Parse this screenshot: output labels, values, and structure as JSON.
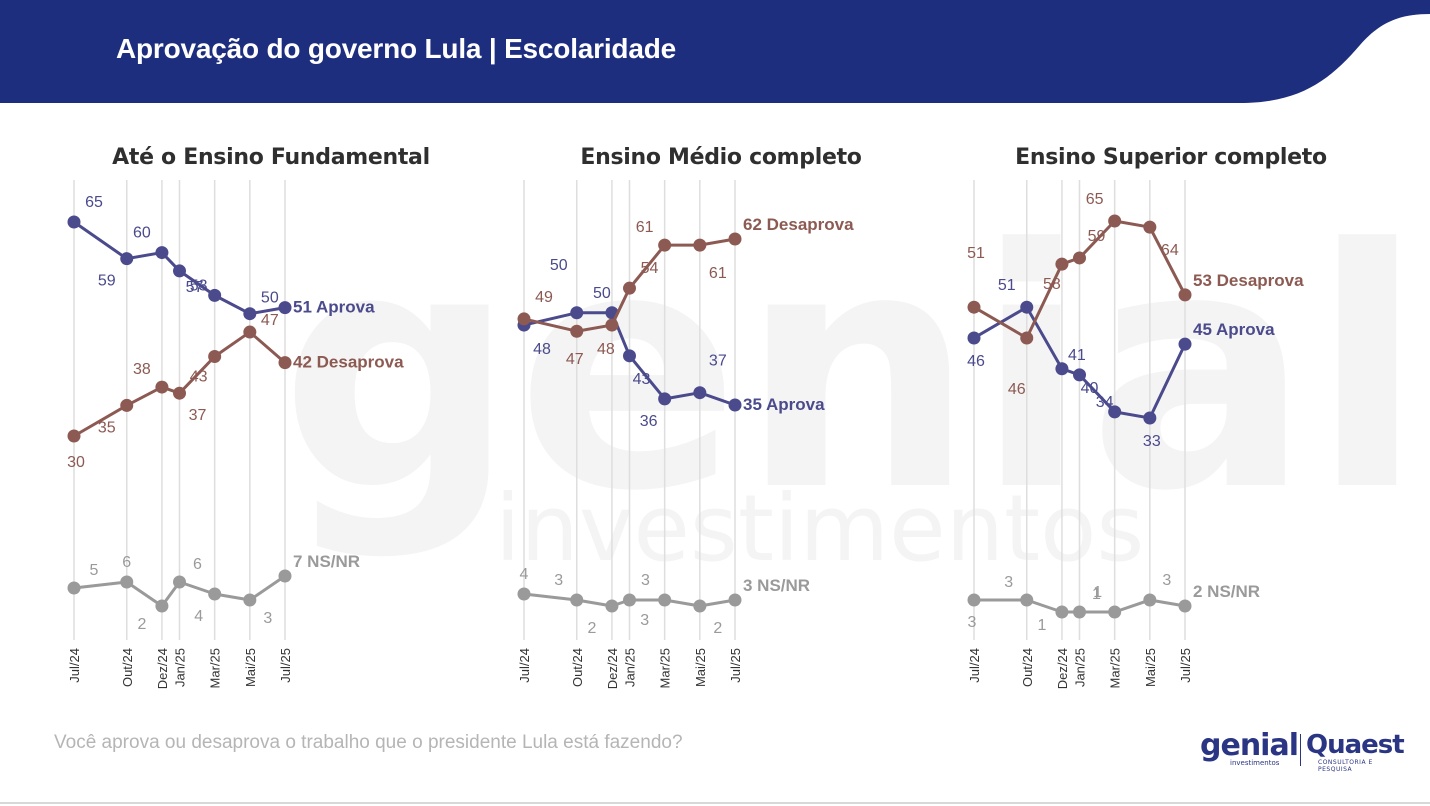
{
  "header": {
    "title": "Aprovação do governo Lula | Escolaridade"
  },
  "footer": {
    "question": "Você aprova ou desaprova o trabalho que o presidente Lula está fazendo?"
  },
  "logos": {
    "genial": "genial",
    "genial_sub": "investimentos",
    "quaest": "Quaest",
    "quaest_sub": "CONSULTORIA E PESQUISA"
  },
  "watermark": {
    "word": "genial",
    "sub": "investimentos"
  },
  "colors": {
    "aprova": "#4a4a8c",
    "desaprova": "#8c5a52",
    "nsnr": "#9a9a9a",
    "header": "#1e2e7e"
  },
  "chart_data": [
    {
      "type": "line",
      "title": "Até o Ensino Fundamental",
      "x": [
        "Jul/24",
        "Out/24",
        "Dez/24",
        "Jan/25",
        "Mar/25",
        "Mai/25",
        "Jul/25"
      ],
      "series": [
        {
          "name": "Aprova",
          "values": [
            65,
            59,
            60,
            57,
            53,
            50,
            51
          ],
          "end_label": "51 Aprova"
        },
        {
          "name": "Desaprova",
          "values": [
            30,
            35,
            38,
            37,
            43,
            47,
            42
          ],
          "end_label": "42 Desaprova"
        },
        {
          "name": "NS/NR",
          "values": [
            5,
            6,
            2,
            6,
            4,
            3,
            7
          ],
          "end_label": "7 NS/NR"
        }
      ]
    },
    {
      "type": "line",
      "title": "Ensino Médio completo",
      "x": [
        "Jul/24",
        "Out/24",
        "Dez/24",
        "Jan/25",
        "Mar/25",
        "Mai/25",
        "Jul/25"
      ],
      "series": [
        {
          "name": "Aprova",
          "values": [
            48,
            50,
            50,
            43,
            36,
            37,
            35
          ],
          "end_label": "35 Aprova"
        },
        {
          "name": "Desaprova",
          "values": [
            49,
            47,
            48,
            54,
            61,
            61,
            62
          ],
          "end_label": "62 Desaprova"
        },
        {
          "name": "NS/NR",
          "values": [
            4,
            3,
            2,
            3,
            3,
            2,
            3
          ],
          "end_label": "3 NS/NR"
        }
      ]
    },
    {
      "type": "line",
      "title": "Ensino Superior completo",
      "x": [
        "Jul/24",
        "Out/24",
        "Dez/24",
        "Jan/25",
        "Mar/25",
        "Mai/25",
        "Jul/25"
      ],
      "series": [
        {
          "name": "Aprova",
          "values": [
            46,
            51,
            41,
            40,
            34,
            33,
            45
          ],
          "end_label": "45 Aprova"
        },
        {
          "name": "Desaprova",
          "values": [
            51,
            46,
            58,
            59,
            65,
            64,
            53
          ],
          "end_label": "53 Desaprova"
        },
        {
          "name": "NS/NR",
          "values": [
            3,
            3,
            1,
            1,
            1,
            3,
            2
          ],
          "end_label": "2 NS/NR"
        }
      ]
    }
  ]
}
